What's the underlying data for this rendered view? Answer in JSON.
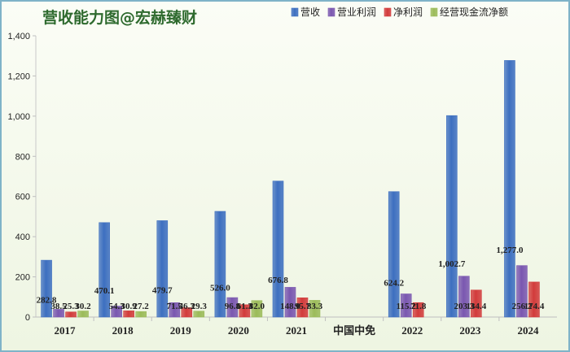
{
  "chart_data": {
    "type": "bar",
    "title": "营收能力图@宏赫臻财",
    "categories": [
      "2017",
      "2018",
      "2019",
      "2020",
      "2021",
      "中国中免",
      "2022",
      "2023",
      "2024"
    ],
    "series": [
      {
        "name": "营收",
        "color": "#3d6fc0",
        "values": [
          282.8,
          470.1,
          479.7,
          526.0,
          676.8,
          null,
          624.2,
          1002.7,
          1277.0
        ],
        "labels": [
          "282.8",
          "470.1",
          "479.7",
          "526.0",
          "676.8",
          null,
          "624.2",
          "1,002.7",
          "1,277.0"
        ]
      },
      {
        "name": "营业利润",
        "color": "#7a57b0",
        "values": [
          38.5,
          54.3,
          71.5,
          96.8,
          148.0,
          null,
          115.2,
          203.3,
          256.2
        ],
        "labels": [
          "38.5",
          "54.3",
          "71.5",
          "96.8",
          "148.0",
          null,
          "115.2",
          "203.3",
          "256.2"
        ]
      },
      {
        "name": "净利润",
        "color": "#d23b3b",
        "values": [
          25.3,
          30.9,
          46.3,
          61.3,
          95.7,
          null,
          71.8,
          134.4,
          174.4
        ],
        "labels": [
          "25.3",
          "30.9",
          "46.3",
          "61.3",
          "95.7",
          null,
          "71.8",
          "134.4",
          "174.4"
        ]
      },
      {
        "name": "经营现金流净额",
        "color": "#9bbb59",
        "values": [
          30.2,
          27.2,
          29.3,
          82.0,
          83.3,
          null,
          null,
          null,
          null
        ],
        "labels": [
          "30.2",
          "27.2",
          "29.3",
          "82.0",
          "83.3",
          null,
          null,
          null,
          null
        ]
      }
    ],
    "ylim": [
      0,
      1400
    ],
    "yticks": [
      0,
      200,
      400,
      600,
      800,
      1000,
      1200,
      1400
    ],
    "yticklabels": [
      "0",
      "200",
      "400",
      "600",
      "800",
      "1,000",
      "1,200",
      "1,400"
    ],
    "legend_position": "top-right",
    "grid": false
  }
}
